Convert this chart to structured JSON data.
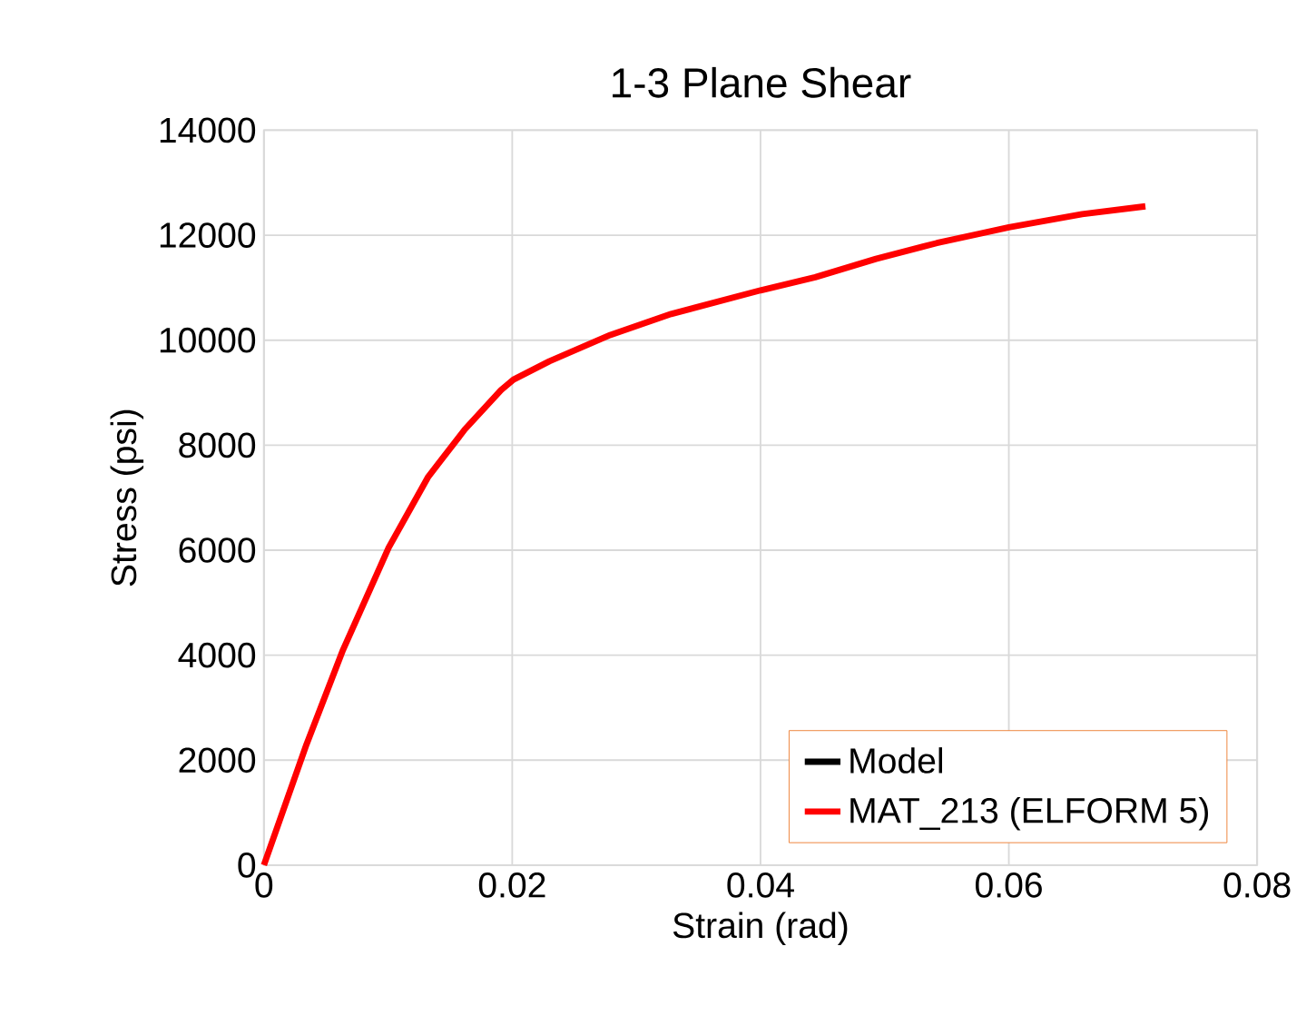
{
  "chart_data": {
    "type": "line",
    "title": "1-3 Plane Shear",
    "xlabel": "Strain (rad)",
    "ylabel": "Stress (psi)",
    "xlim": [
      0,
      0.08
    ],
    "xticks": [
      0,
      0.02,
      0.04,
      0.06,
      0.08
    ],
    "ylim": [
      0,
      14000
    ],
    "yticks": [
      0,
      2000,
      4000,
      6000,
      8000,
      10000,
      12000,
      14000
    ],
    "grid": true,
    "legend": "bottom right",
    "marker": "none",
    "line_style": "solid",
    "series": [
      {
        "name": "Model",
        "color": "#000000"
      },
      {
        "name": "MAT_213 (ELFORM 5)",
        "color": "#ff0000",
        "x": [
          0,
          0.00343,
          0.00637,
          0.01005,
          0.01324,
          0.01618,
          0.0191,
          0.0201,
          0.023,
          0.0279,
          0.0328,
          0.04,
          0.0444,
          0.0493,
          0.0542,
          0.06,
          0.0659,
          0.071
        ],
        "values": [
          0,
          2300,
          4100,
          6050,
          7400,
          8300,
          9050,
          9250,
          9600,
          10100,
          10500,
          10950,
          11200,
          11550,
          11850,
          12150,
          12400,
          12550
        ]
      }
    ]
  }
}
